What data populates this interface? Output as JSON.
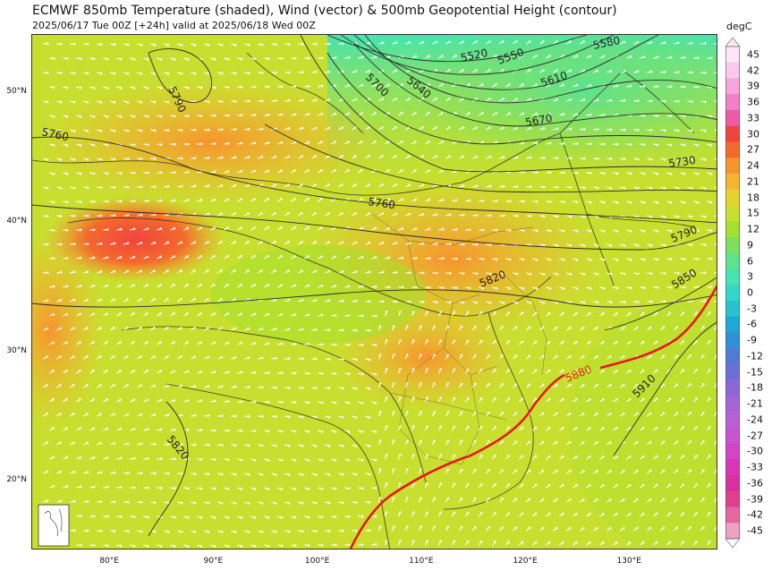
{
  "title": "ECMWF 850mb Temperature (shaded), Wind (vector) & 500mb Geopotential Height (contour)",
  "subtitle": "2025/06/17 Tue 00Z [+24h] valid at 2025/06/18 Wed 00Z",
  "colorbar": {
    "unit": "degC",
    "ticks": [
      "45",
      "42",
      "39",
      "36",
      "33",
      "30",
      "27",
      "24",
      "21",
      "18",
      "15",
      "12",
      "9",
      "6",
      "3",
      "0",
      "-3",
      "-6",
      "-9",
      "-12",
      "-15",
      "-18",
      "-21",
      "-24",
      "-27",
      "-30",
      "-33",
      "-36",
      "-39",
      "-42",
      "-45"
    ],
    "colors": [
      "#fde6f6",
      "#fbc8ec",
      "#f7a3dc",
      "#f27fc9",
      "#ee5aa6",
      "#f0443f",
      "#f56a2c",
      "#f7942d",
      "#f6b431",
      "#e6d22f",
      "#c9df2f",
      "#a6e02d",
      "#7ce05e",
      "#5de28d",
      "#45e4b0",
      "#31d8c7",
      "#26c3cf",
      "#1ea8d4",
      "#2f8fd8",
      "#4f7ad8",
      "#6d6ed6",
      "#8c67d7",
      "#a565d9",
      "#b85fd8",
      "#c954d3",
      "#d444c9",
      "#d935b6",
      "#de2d9c",
      "#e13f8b",
      "#e6679f",
      "#efa1c3"
    ]
  },
  "axes": {
    "lat_labels": [
      {
        "text": "50°N",
        "lat": 50
      },
      {
        "text": "40°N",
        "lat": 40
      },
      {
        "text": "30°N",
        "lat": 30
      },
      {
        "text": "20°N",
        "lat": 20
      }
    ],
    "lon_labels": [
      {
        "text": "80°E",
        "lon": 80
      },
      {
        "text": "90°E",
        "lon": 90
      },
      {
        "text": "100°E",
        "lon": 100
      },
      {
        "text": "110°E",
        "lon": 110
      },
      {
        "text": "120°E",
        "lon": 120
      },
      {
        "text": "130°E",
        "lon": 130
      }
    ]
  },
  "contour_labels": [
    {
      "text": "5520",
      "highlight": false
    },
    {
      "text": "5550",
      "highlight": false
    },
    {
      "text": "5580",
      "highlight": false
    },
    {
      "text": "5610",
      "highlight": false
    },
    {
      "text": "5640",
      "highlight": false
    },
    {
      "text": "5670",
      "highlight": false
    },
    {
      "text": "5700",
      "highlight": false
    },
    {
      "text": "5730",
      "highlight": false
    },
    {
      "text": "5760",
      "highlight": false
    },
    {
      "text": "5760",
      "highlight": false
    },
    {
      "text": "5790",
      "highlight": false
    },
    {
      "text": "5790",
      "highlight": false
    },
    {
      "text": "5820",
      "highlight": false
    },
    {
      "text": "5820",
      "highlight": false
    },
    {
      "text": "5850",
      "highlight": false
    },
    {
      "text": "5880",
      "highlight": true
    },
    {
      "text": "5910",
      "highlight": false
    }
  ]
}
